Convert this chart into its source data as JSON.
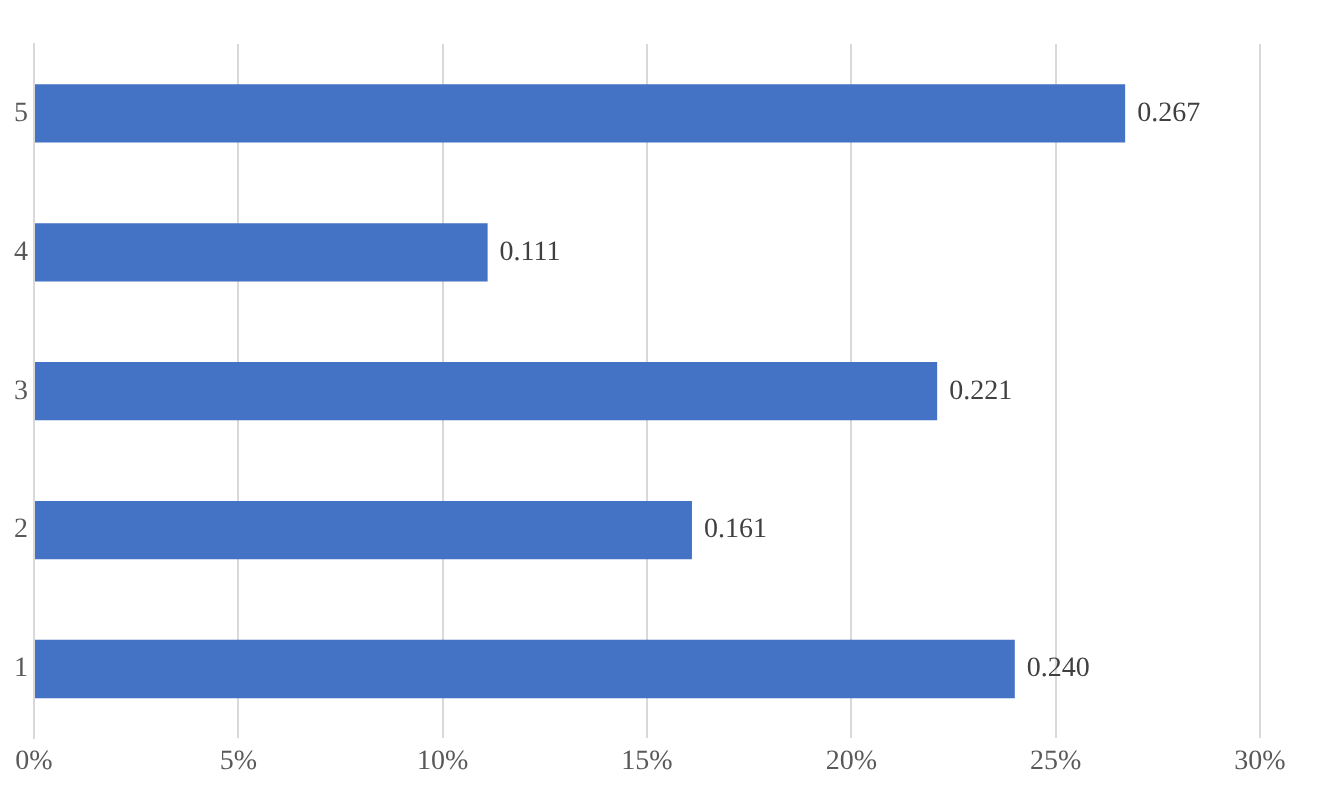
{
  "chart_data": {
    "type": "bar",
    "orientation": "horizontal",
    "categories": [
      "5",
      "4",
      "3",
      "2",
      "1"
    ],
    "values": [
      0.267,
      0.111,
      0.221,
      0.161,
      0.24
    ],
    "value_labels": [
      "0.267",
      "0.111",
      "0.221",
      "0.161",
      "0.240"
    ],
    "color": "#4472c4",
    "xlim": [
      0,
      0.3
    ],
    "xticks": [
      {
        "value": 0,
        "label": "0%"
      },
      {
        "value": 0.05,
        "label": "5%"
      },
      {
        "value": 0.1,
        "label": "10%"
      },
      {
        "value": 0.15,
        "label": "15%"
      },
      {
        "value": 0.2,
        "label": "20%"
      },
      {
        "value": 0.25,
        "label": "25%"
      },
      {
        "value": 0.3,
        "label": "30%"
      }
    ],
    "grid": "x"
  }
}
